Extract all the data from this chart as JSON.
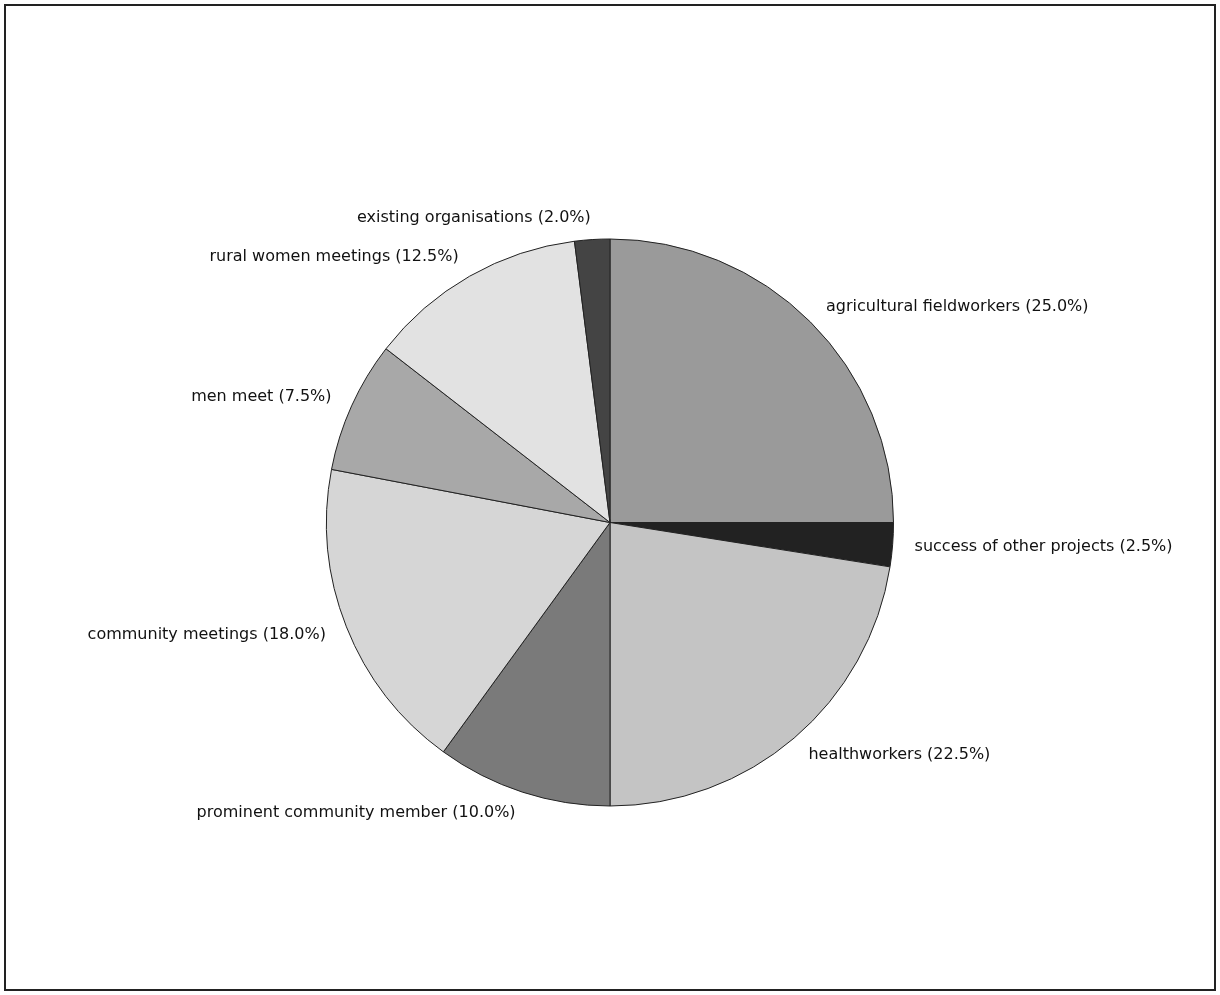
{
  "chart_data": {
    "type": "pie",
    "categories": [
      "agricultural fieldworkers",
      "success of other projects",
      "healthworkers",
      "prominent community member",
      "community meetings",
      "men meet",
      "rural women meetings",
      "existing organisations"
    ],
    "values": [
      25.0,
      2.5,
      22.5,
      10.0,
      18.0,
      7.5,
      12.5,
      2.0
    ],
    "value_labels": [
      "(25.0%)",
      "(2.5%)",
      "(22.5%)",
      "(10.0%)",
      "(18.0%)",
      "(7.5%)",
      "(12.5%)",
      "(2.0%)"
    ],
    "colors": [
      "#9a9a9a",
      "#222222",
      "#c4c4c4",
      "#7a7a7a",
      "#d6d6d6",
      "#a8a8a8",
      "#e2e2e2",
      "#444444"
    ],
    "legend": false
  }
}
